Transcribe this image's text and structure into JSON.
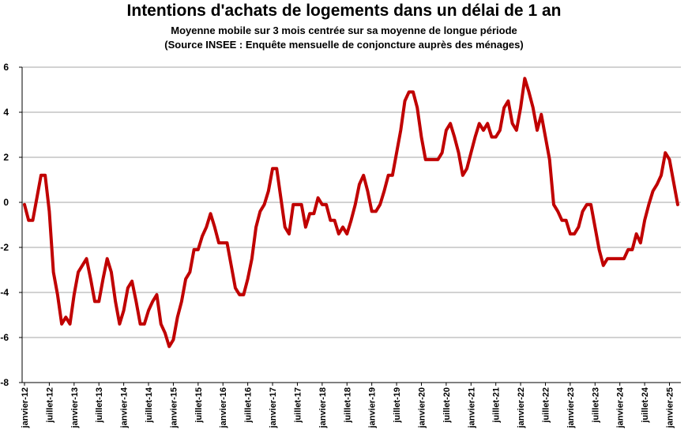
{
  "chart_data": {
    "type": "line",
    "title": "Intentions d'achats de logements dans un délai de 1 an",
    "subtitle": [
      "Moyenne mobile sur 3 mois centrée sur sa moyenne de longue période",
      "(Source INSEE : Enquête mensuelle de conjoncture auprès des ménages)"
    ],
    "xlabel": "",
    "ylabel": "",
    "ylim": [
      -8,
      6
    ],
    "yticks": [
      6,
      4,
      2,
      0,
      -2,
      -4,
      -6,
      -8
    ],
    "grid": "horizontal",
    "line_color": "#c00000",
    "x_tick_labels": [
      "janvier-12",
      "juillet-12",
      "janvier-13",
      "juillet-13",
      "janvier-14",
      "juillet-14",
      "janvier-15",
      "juillet-15",
      "janvier-16",
      "juillet-16",
      "janvier-17",
      "juillet-17",
      "janvier-18",
      "juillet-18",
      "janvier-19",
      "juillet-19",
      "janvier-20",
      "juillet-20",
      "janvier-21",
      "juillet-21",
      "janvier-22",
      "juillet-22",
      "janvier-23",
      "juillet-23",
      "janvier-24",
      "juillet-24",
      "janvier-25"
    ],
    "start": "janvier-12",
    "values": [
      -0.1,
      -0.8,
      -0.8,
      0.2,
      1.2,
      1.2,
      -0.4,
      -3.1,
      -4.1,
      -5.4,
      -5.1,
      -5.4,
      -4.1,
      -3.1,
      -2.8,
      -2.5,
      -3.4,
      -4.4,
      -4.4,
      -3.4,
      -2.5,
      -3.1,
      -4.4,
      -5.4,
      -4.8,
      -3.8,
      -3.5,
      -4.4,
      -5.4,
      -5.4,
      -4.8,
      -4.4,
      -4.1,
      -5.4,
      -5.8,
      -6.4,
      -6.1,
      -5.1,
      -4.4,
      -3.4,
      -3.1,
      -2.1,
      -2.1,
      -1.5,
      -1.1,
      -0.5,
      -1.1,
      -1.8,
      -1.8,
      -1.8,
      -2.8,
      -3.8,
      -4.1,
      -4.1,
      -3.4,
      -2.5,
      -1.1,
      -0.4,
      -0.1,
      0.5,
      1.5,
      1.5,
      0.2,
      -1.1,
      -1.4,
      -0.1,
      -0.1,
      -0.1,
      -1.1,
      -0.5,
      -0.5,
      0.2,
      -0.1,
      -0.1,
      -0.8,
      -0.8,
      -1.4,
      -1.1,
      -1.4,
      -0.8,
      -0.1,
      0.8,
      1.2,
      0.5,
      -0.4,
      -0.4,
      -0.1,
      0.5,
      1.2,
      1.2,
      2.2,
      3.2,
      4.5,
      4.9,
      4.9,
      4.2,
      2.9,
      1.9,
      1.9,
      1.9,
      1.9,
      2.2,
      3.2,
      3.5,
      2.9,
      2.2,
      1.2,
      1.5,
      2.2,
      2.9,
      3.5,
      3.2,
      3.5,
      2.9,
      2.9,
      3.2,
      4.2,
      4.5,
      3.5,
      3.2,
      4.2,
      5.5,
      4.9,
      4.2,
      3.2,
      3.9,
      2.9,
      1.9,
      -0.1,
      -0.4,
      -0.8,
      -0.8,
      -1.4,
      -1.4,
      -1.1,
      -0.4,
      -0.1,
      -0.1,
      -1.1,
      -2.1,
      -2.8,
      -2.5,
      -2.5,
      -2.5,
      -2.5,
      -2.5,
      -2.1,
      -2.1,
      -1.4,
      -1.8,
      -0.8,
      -0.1,
      0.5,
      0.8,
      1.2,
      2.2,
      1.9,
      0.9,
      -0.1
    ]
  }
}
